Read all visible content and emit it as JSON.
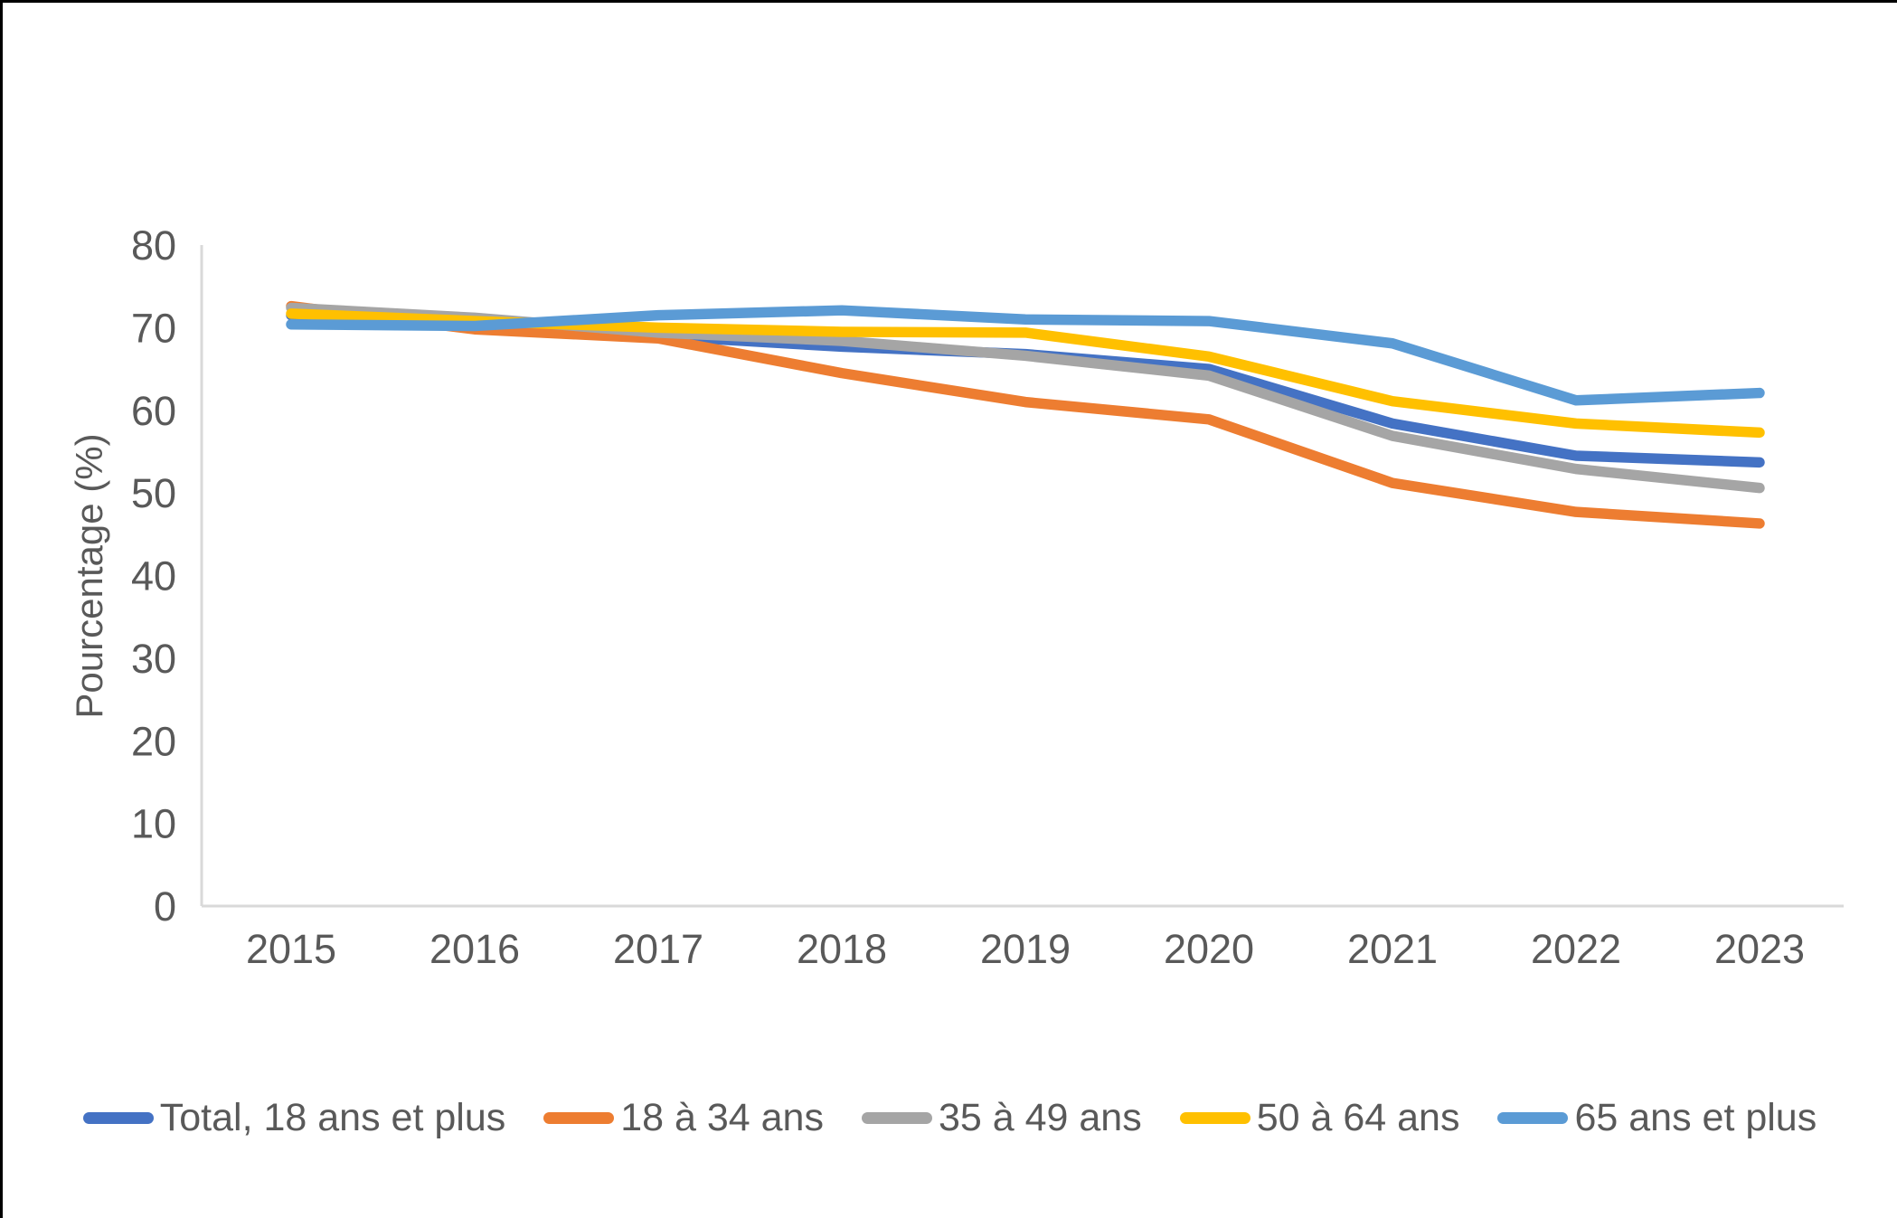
{
  "chart_data": {
    "type": "line",
    "title": "",
    "xlabel": "",
    "ylabel": "Pourcentage (%)",
    "categories": [
      "2015",
      "2016",
      "2017",
      "2018",
      "2019",
      "2020",
      "2021",
      "2022",
      "2023"
    ],
    "series": [
      {
        "name": "Total, 18 ans et plus",
        "color": "#4472C4",
        "values": [
          71.5,
          70.4,
          69.0,
          67.7,
          66.8,
          65.0,
          58.4,
          54.5,
          53.7
        ]
      },
      {
        "name": "18 à 34 ans",
        "color": "#ED7D31",
        "values": [
          72.6,
          69.8,
          68.7,
          64.5,
          61.0,
          58.9,
          51.2,
          47.7,
          46.3
        ]
      },
      {
        "name": "35 à 49 ans",
        "color": "#A5A5A5",
        "values": [
          72.4,
          71.2,
          69.4,
          68.4,
          66.6,
          64.2,
          56.9,
          52.9,
          50.6
        ]
      },
      {
        "name": "50 à 64 ans",
        "color": "#FFC000",
        "values": [
          71.7,
          70.8,
          70.0,
          69.5,
          69.4,
          66.5,
          61.1,
          58.4,
          57.3
        ]
      },
      {
        "name": "65 ans et plus",
        "color": "#5B9BD5",
        "values": [
          70.4,
          70.2,
          71.5,
          72.1,
          71.0,
          70.8,
          68.1,
          61.2,
          62.1
        ]
      }
    ],
    "ylim": [
      0,
      80
    ],
    "yticks": [
      0,
      10,
      20,
      30,
      40,
      50,
      60,
      70,
      80
    ],
    "grid": false,
    "legend_position": "bottom",
    "axis_line_color": "#D9D9D9",
    "text_color": "#595959"
  }
}
